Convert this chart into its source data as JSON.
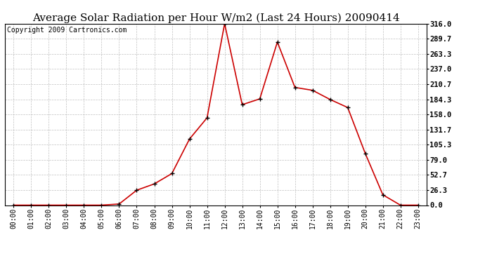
{
  "title": "Average Solar Radiation per Hour W/m2 (Last 24 Hours) 20090414",
  "copyright": "Copyright 2009 Cartronics.com",
  "hours": [
    "00:00",
    "01:00",
    "02:00",
    "03:00",
    "04:00",
    "05:00",
    "06:00",
    "07:00",
    "08:00",
    "09:00",
    "10:00",
    "11:00",
    "12:00",
    "13:00",
    "14:00",
    "15:00",
    "16:00",
    "17:00",
    "18:00",
    "19:00",
    "20:00",
    "21:00",
    "22:00",
    "23:00"
  ],
  "values": [
    0,
    0,
    0,
    0,
    0,
    0,
    2,
    26,
    37,
    55,
    115,
    152,
    316,
    175,
    185,
    284,
    205,
    200,
    184,
    170,
    90,
    18,
    0,
    0
  ],
  "line_color": "#cc0000",
  "marker_color": "#000000",
  "background_color": "#ffffff",
  "grid_color": "#c0c0c0",
  "yticks": [
    0.0,
    26.3,
    52.7,
    79.0,
    105.3,
    131.7,
    158.0,
    184.3,
    210.7,
    237.0,
    263.3,
    289.7,
    316.0
  ],
  "ylim": [
    0,
    316.0
  ],
  "title_fontsize": 11,
  "copyright_fontsize": 7,
  "tick_fontsize": 7.5,
  "xtick_fontsize": 7
}
